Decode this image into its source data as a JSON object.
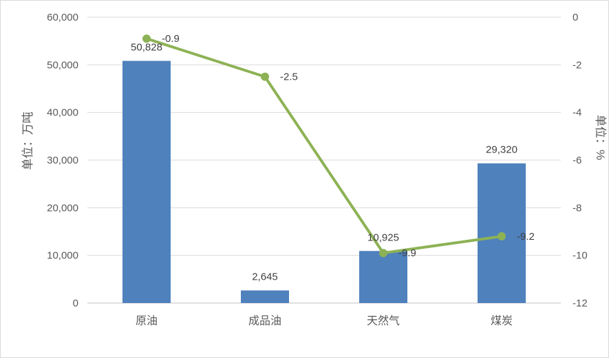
{
  "chart_data": {
    "type": "bar",
    "categories": [
      "原油",
      "成品油",
      "天然气",
      "煤炭"
    ],
    "series": [
      {
        "type": "bar",
        "axis": "left",
        "values": [
          50828,
          2645,
          10925,
          29320
        ],
        "labels": [
          "50,828",
          "2,645",
          "10,925",
          "29,320"
        ],
        "color": "#4f81bd"
      },
      {
        "type": "line",
        "axis": "right",
        "values": [
          -0.9,
          -2.5,
          -9.9,
          -9.2
        ],
        "labels": [
          "-0.9",
          "-2.5",
          "-9.9",
          "-9.2"
        ],
        "color": "#8db255"
      }
    ],
    "ylabel": "单位：万吨",
    "y2label": "单位：%",
    "ylim": [
      0,
      60000
    ],
    "y2lim": [
      -12,
      0
    ],
    "yticks": [
      "0",
      "10,000",
      "20,000",
      "30,000",
      "40,000",
      "50,000",
      "60,000"
    ],
    "y2ticks": [
      "0",
      "-2",
      "-4",
      "-6",
      "-8",
      "-10",
      "-12"
    ],
    "grid": true,
    "legend": "none"
  }
}
